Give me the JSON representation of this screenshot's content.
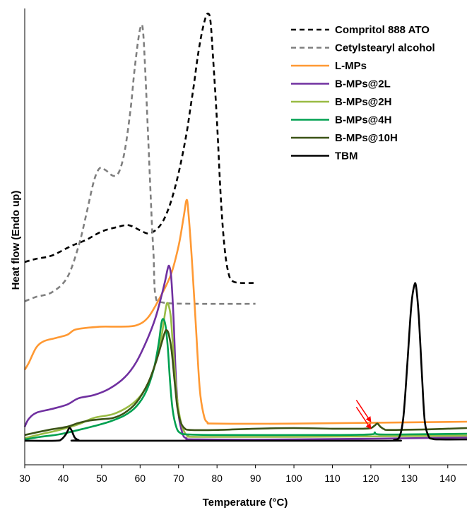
{
  "chart_data": {
    "type": "line",
    "title": "",
    "xlabel": "Temperature (°C)",
    "ylabel": "Heat flow (Endo up)",
    "xlim": [
      30,
      145
    ],
    "x_ticks": [
      "30",
      "40",
      "50",
      "60",
      "70",
      "80",
      "90",
      "100",
      "110",
      "120",
      "130",
      "140"
    ],
    "y_ticks_shown": false,
    "grid": false,
    "legend_position": "top-right",
    "y_units": "arbitrary (stacked, offset)",
    "annotations": [
      {
        "type": "arrow",
        "color": "#ff0000",
        "points_to": {
          "x": 121,
          "series": "B-MPs@4H"
        }
      },
      {
        "type": "arrow",
        "color": "#ff0000",
        "points_to": {
          "x": 121,
          "series": "B-MPs@10H"
        }
      }
    ],
    "series": [
      {
        "name": "Compritol 888 ATO",
        "color": "#000000",
        "dash": "dashed",
        "points": [
          [
            30,
            320
          ],
          [
            33,
            325
          ],
          [
            37,
            330
          ],
          [
            42,
            345
          ],
          [
            46,
            355
          ],
          [
            50,
            368
          ],
          [
            54,
            375
          ],
          [
            57,
            378
          ],
          [
            60,
            370
          ],
          [
            62,
            365
          ],
          [
            64,
            370
          ],
          [
            66,
            385
          ],
          [
            68,
            415
          ],
          [
            70,
            460
          ],
          [
            72,
            520
          ],
          [
            73,
            560
          ],
          [
            74,
            600
          ],
          [
            75,
            645
          ],
          [
            76,
            680
          ],
          [
            77,
            705
          ],
          [
            77.7,
            712
          ],
          [
            78.3,
            700
          ],
          [
            79,
            640
          ],
          [
            80,
            540
          ],
          [
            81,
            420
          ],
          [
            82,
            340
          ],
          [
            83,
            302
          ],
          [
            84,
            290
          ],
          [
            86,
            287
          ],
          [
            90,
            287
          ]
        ]
      },
      {
        "name": "Cetylstearyl alcohol",
        "color": "#7f7f7f",
        "dash": "dashed",
        "points": [
          [
            30,
            258
          ],
          [
            33,
            265
          ],
          [
            37,
            272
          ],
          [
            41,
            295
          ],
          [
            44,
            345
          ],
          [
            46,
            395
          ],
          [
            48,
            448
          ],
          [
            49.5,
            468
          ],
          [
            51,
            465
          ],
          [
            53,
            456
          ],
          [
            54.5,
            462
          ],
          [
            56,
            495
          ],
          [
            57.5,
            560
          ],
          [
            58.5,
            620
          ],
          [
            59.5,
            670
          ],
          [
            60.2,
            692
          ],
          [
            60.7,
            688
          ],
          [
            61.2,
            640
          ],
          [
            62,
            530
          ],
          [
            63,
            390
          ],
          [
            63.5,
            330
          ],
          [
            64,
            267
          ],
          [
            66,
            256
          ],
          [
            75,
            254
          ],
          [
            90,
            254
          ]
        ]
      },
      {
        "name": "L-MPs",
        "color": "#ff9933",
        "dash": "solid",
        "points": [
          [
            30,
            150
          ],
          [
            31,
            160
          ],
          [
            33,
            185
          ],
          [
            35,
            195
          ],
          [
            38,
            200
          ],
          [
            41,
            205
          ],
          [
            43,
            213
          ],
          [
            46,
            216
          ],
          [
            50,
            218
          ],
          [
            55,
            218
          ],
          [
            59,
            220
          ],
          [
            62,
            232
          ],
          [
            65,
            262
          ],
          [
            68,
            300
          ],
          [
            70,
            345
          ],
          [
            71.3,
            390
          ],
          [
            72.1,
            418
          ],
          [
            72.6,
            395
          ],
          [
            73.5,
            320
          ],
          [
            74.5,
            220
          ],
          [
            75.5,
            120
          ],
          [
            76.5,
            80
          ],
          [
            77.5,
            67
          ],
          [
            80,
            65
          ],
          [
            100,
            65
          ],
          [
            145,
            68
          ]
        ]
      },
      {
        "name": "B-MPs@2L",
        "color": "#7030a0",
        "dash": "solid",
        "points": [
          [
            30,
            60
          ],
          [
            31,
            72
          ],
          [
            33,
            82
          ],
          [
            37,
            88
          ],
          [
            41,
            95
          ],
          [
            44,
            105
          ],
          [
            48,
            110
          ],
          [
            52,
            120
          ],
          [
            56,
            138
          ],
          [
            59,
            162
          ],
          [
            62,
            200
          ],
          [
            64,
            232
          ],
          [
            65.5,
            265
          ],
          [
            66.5,
            290
          ],
          [
            67.2,
            310
          ],
          [
            67.6,
            313
          ],
          [
            68.1,
            295
          ],
          [
            68.7,
            230
          ],
          [
            69.3,
            140
          ],
          [
            70,
            80
          ],
          [
            71,
            50
          ],
          [
            72,
            42
          ],
          [
            75,
            40
          ],
          [
            100,
            40
          ],
          [
            145,
            43
          ]
        ]
      },
      {
        "name": "B-MPs@2H",
        "color": "#99bb44",
        "dash": "solid",
        "points": [
          [
            30,
            42
          ],
          [
            34,
            48
          ],
          [
            39,
            55
          ],
          [
            44,
            64
          ],
          [
            48,
            74
          ],
          [
            53,
            80
          ],
          [
            57,
            92
          ],
          [
            60,
            108
          ],
          [
            62,
            128
          ],
          [
            64,
            160
          ],
          [
            65.5,
            200
          ],
          [
            66.5,
            240
          ],
          [
            67,
            255
          ],
          [
            67.5,
            250
          ],
          [
            68,
            232
          ],
          [
            68.5,
            190
          ],
          [
            69,
            150
          ],
          [
            69.5,
            110
          ],
          [
            70.5,
            70
          ],
          [
            71.5,
            52
          ],
          [
            72.5,
            46
          ],
          [
            75,
            44
          ],
          [
            100,
            44
          ],
          [
            145,
            46
          ]
        ]
      },
      {
        "name": "B-MPs@4H",
        "color": "#00a050",
        "dash": "solid",
        "points": [
          [
            30,
            40
          ],
          [
            34,
            44
          ],
          [
            39,
            48
          ],
          [
            44,
            55
          ],
          [
            48,
            61
          ],
          [
            52,
            68
          ],
          [
            56,
            78
          ],
          [
            59,
            92
          ],
          [
            61.5,
            115
          ],
          [
            63.5,
            150
          ],
          [
            64.8,
            190
          ],
          [
            65.5,
            222
          ],
          [
            66,
            230
          ],
          [
            66.6,
            220
          ],
          [
            67.2,
            185
          ],
          [
            67.8,
            130
          ],
          [
            68.5,
            85
          ],
          [
            69.5,
            58
          ],
          [
            70.5,
            50
          ],
          [
            72,
            48
          ],
          [
            80,
            47
          ],
          [
            110,
            47
          ],
          [
            120,
            48
          ],
          [
            121,
            51
          ],
          [
            122,
            48
          ],
          [
            130,
            48
          ],
          [
            145,
            49
          ]
        ]
      },
      {
        "name": "B-MPs@10H",
        "color": "#3b5316",
        "dash": "solid",
        "points": [
          [
            30,
            47
          ],
          [
            33,
            51
          ],
          [
            37,
            56
          ],
          [
            41,
            60
          ],
          [
            44,
            66
          ],
          [
            47,
            70
          ],
          [
            50,
            72
          ],
          [
            53,
            74
          ],
          [
            56,
            82
          ],
          [
            59,
            98
          ],
          [
            62,
            128
          ],
          [
            64,
            160
          ],
          [
            65.5,
            190
          ],
          [
            66.5,
            210
          ],
          [
            67,
            212
          ],
          [
            67.5,
            205
          ],
          [
            68.2,
            180
          ],
          [
            69,
            130
          ],
          [
            69.7,
            90
          ],
          [
            70.5,
            68
          ],
          [
            71.5,
            58
          ],
          [
            73,
            55
          ],
          [
            80,
            55
          ],
          [
            90,
            57
          ],
          [
            100,
            58
          ],
          [
            110,
            57
          ],
          [
            118,
            57
          ],
          [
            120,
            58
          ],
          [
            121,
            62
          ],
          [
            121.7,
            65
          ],
          [
            122.5,
            60
          ],
          [
            123.5,
            56
          ],
          [
            125,
            55
          ],
          [
            135,
            56
          ],
          [
            145,
            58
          ]
        ]
      },
      {
        "name": "TBM",
        "color": "#000000",
        "dash": "solid",
        "points": [
          [
            30,
            38
          ],
          [
            38,
            38
          ],
          [
            39.5,
            40
          ],
          [
            40.7,
            48
          ],
          [
            41.6,
            58
          ],
          [
            42.2,
            54
          ],
          [
            43,
            43
          ],
          [
            44,
            39
          ],
          [
            45,
            38
          ],
          [
            80,
            38
          ],
          [
            124,
            38
          ],
          [
            126,
            39
          ],
          [
            127.5,
            45
          ],
          [
            128.5,
            78
          ],
          [
            129.5,
            160
          ],
          [
            130.5,
            250
          ],
          [
            131.3,
            283
          ],
          [
            131.8,
            280
          ],
          [
            132.5,
            230
          ],
          [
            133.3,
            140
          ],
          [
            134,
            70
          ],
          [
            135,
            45
          ],
          [
            136,
            41
          ],
          [
            138,
            40
          ],
          [
            145,
            40
          ]
        ]
      }
    ]
  }
}
